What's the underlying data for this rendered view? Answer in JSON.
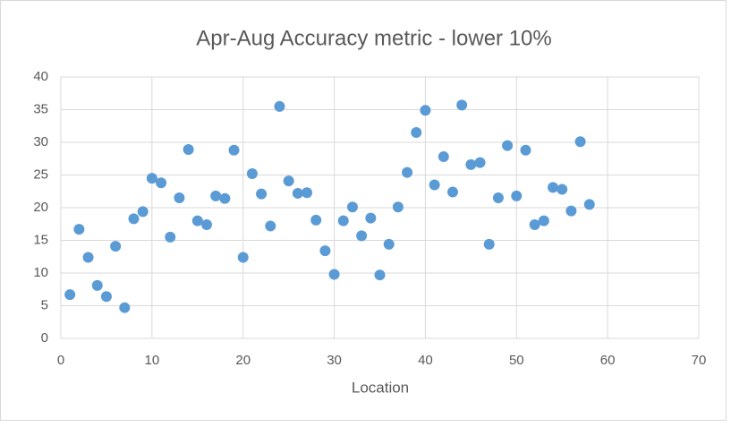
{
  "chart_data": {
    "type": "scatter",
    "title": "Apr-Aug Accuracy metric - lower 10%",
    "x_label": "Location",
    "series": [
      {
        "color": "#5b9bd5",
        "x": [
          1,
          2,
          3,
          4,
          5,
          6,
          7,
          8,
          9,
          10,
          11,
          12,
          13,
          14,
          15,
          16,
          17,
          18,
          19,
          20,
          21,
          22,
          23,
          24,
          25,
          26,
          27,
          28,
          29,
          30,
          31,
          32,
          33,
          34,
          35,
          36,
          37,
          38,
          39,
          40,
          41,
          42,
          43,
          44,
          45,
          46,
          47,
          48,
          49,
          50,
          51,
          52,
          53,
          54,
          55,
          56,
          57,
          58
        ],
        "values": [
          6.7,
          16.7,
          12.4,
          8.1,
          6.4,
          14.1,
          4.7,
          18.3,
          19.4,
          24.5,
          23.8,
          15.5,
          21.5,
          28.9,
          18.0,
          17.4,
          21.8,
          21.4,
          28.8,
          12.4,
          25.2,
          22.1,
          17.2,
          35.5,
          24.1,
          22.2,
          22.3,
          18.1,
          13.4,
          9.8,
          18.0,
          20.1,
          15.7,
          18.4,
          9.7,
          14.4,
          20.1,
          25.4,
          31.5,
          34.9,
          23.5,
          27.8,
          22.4,
          35.7,
          26.6,
          26.9,
          14.4,
          21.5,
          29.5,
          21.8,
          28.8,
          17.4,
          18.0,
          23.1,
          22.8,
          19.5,
          30.1,
          20.5
        ]
      }
    ],
    "xlim": [
      0,
      70
    ],
    "xticks": [
      0,
      10,
      20,
      30,
      40,
      50,
      60,
      70
    ],
    "ylim": [
      0,
      40
    ],
    "yticks": [
      0,
      5,
      10,
      15,
      20,
      25,
      30,
      35,
      40
    ],
    "grid": true
  }
}
